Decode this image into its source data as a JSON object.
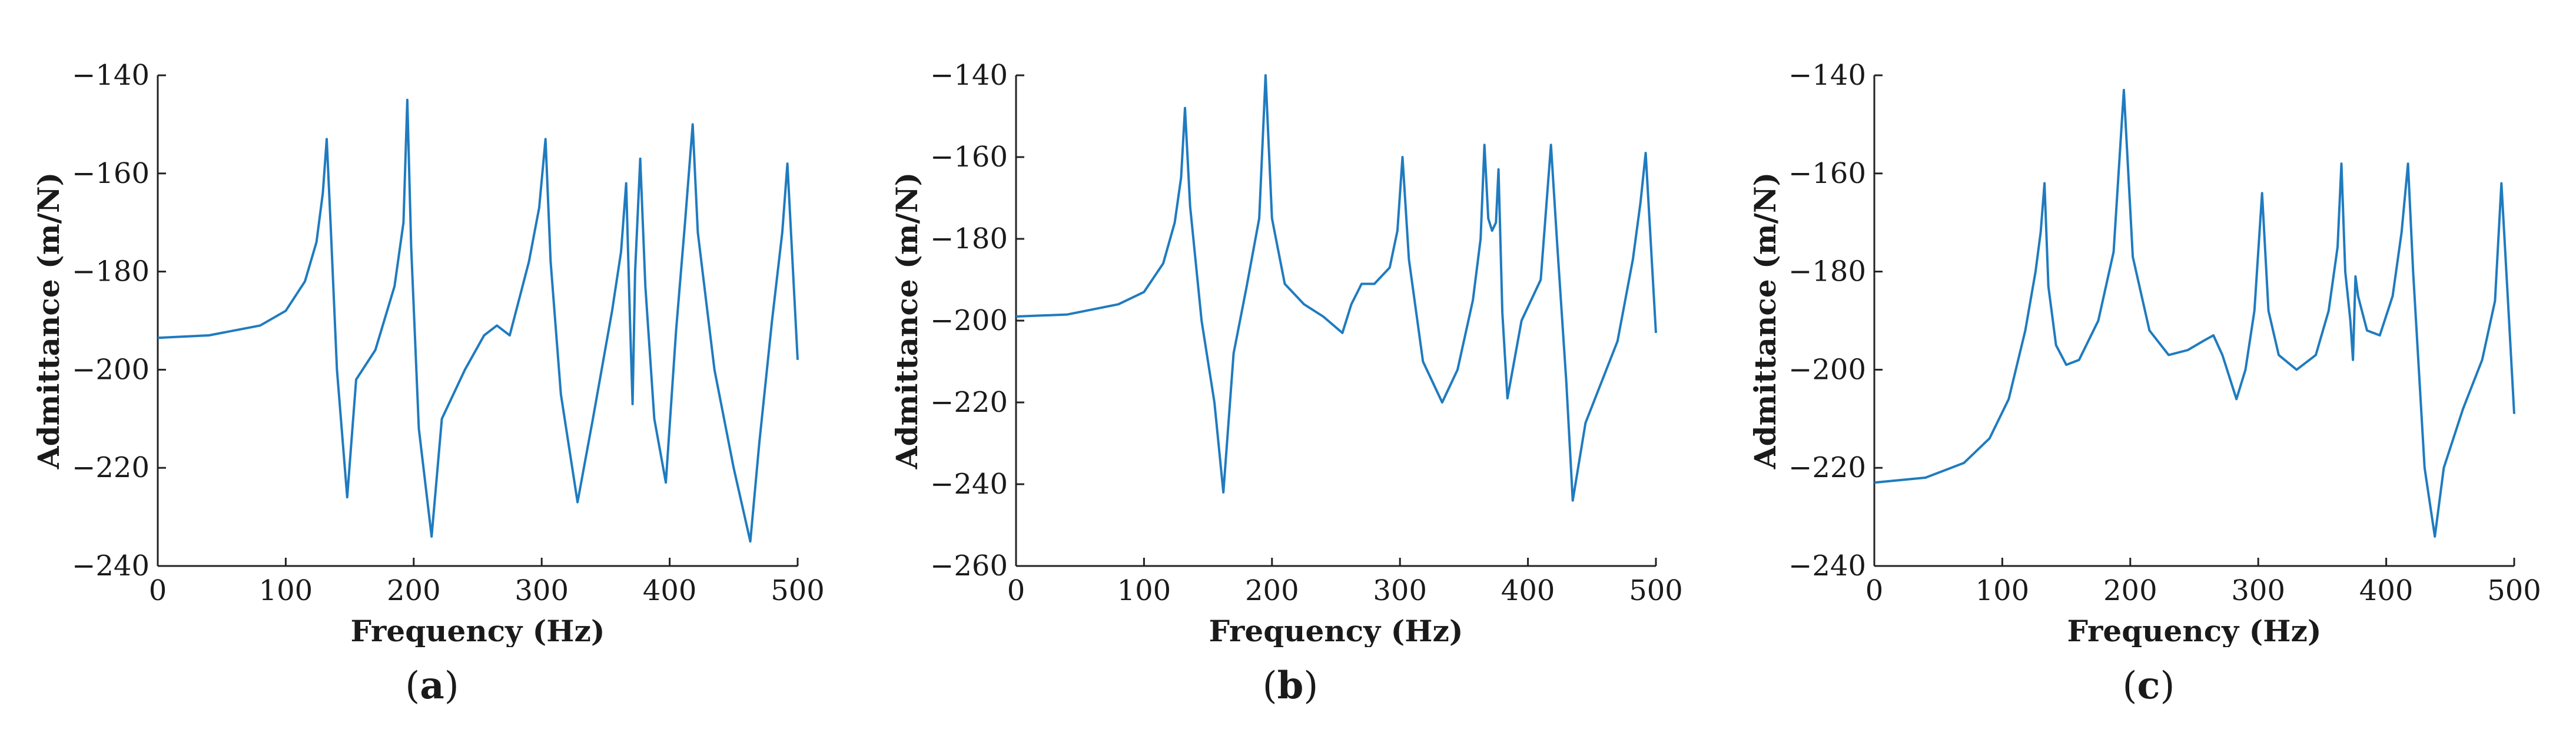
{
  "colors": {
    "line": "#1f7bbf",
    "axis": "#222222"
  },
  "chart_data": [
    {
      "type": "line",
      "panel_label": "a",
      "xlabel": "Frequency (Hz)",
      "ylabel": "Admittance (m/N)",
      "xlim": [
        0,
        500
      ],
      "ylim": [
        -240,
        -140
      ],
      "xticks": [
        0,
        100,
        200,
        300,
        400,
        500
      ],
      "yticks": [
        -140,
        -160,
        -180,
        -200,
        -220,
        -240
      ],
      "grid": false,
      "series": [
        {
          "x": [
            0,
            40,
            80,
            100,
            115,
            124,
            129,
            132,
            135,
            140,
            148,
            155,
            170,
            185,
            192,
            195,
            198,
            204,
            214,
            222,
            240,
            255,
            265,
            275,
            290,
            298,
            303,
            307,
            315,
            328,
            340,
            355,
            362,
            366,
            369,
            371,
            373,
            377,
            381,
            388,
            397,
            405,
            412,
            418,
            422,
            435,
            450,
            463,
            470,
            480,
            488,
            492,
            500
          ],
          "y": [
            -193.5,
            -193,
            -191,
            -188,
            -182,
            -174,
            -164,
            -153,
            -170,
            -200,
            -226,
            -202,
            -196,
            -183,
            -170,
            -145,
            -175,
            -212,
            -234,
            -210,
            -200,
            -193,
            -191,
            -193,
            -178,
            -167,
            -153,
            -178,
            -205,
            -227,
            -210,
            -188,
            -176,
            -162,
            -190,
            -207,
            -180,
            -157,
            -183,
            -210,
            -223,
            -192,
            -170,
            -150,
            -172,
            -200,
            -220,
            -235,
            -215,
            -190,
            -172,
            -158,
            -198
          ]
        }
      ]
    },
    {
      "type": "line",
      "panel_label": "b",
      "xlabel": "Frequency (Hz)",
      "ylabel": "Admittance (m/N)",
      "xlim": [
        0,
        500
      ],
      "ylim": [
        -260,
        -140
      ],
      "xticks": [
        0,
        100,
        200,
        300,
        400,
        500
      ],
      "yticks": [
        -140,
        -160,
        -180,
        -200,
        -220,
        -240,
        -260
      ],
      "grid": false,
      "series": [
        {
          "x": [
            0,
            40,
            80,
            100,
            115,
            124,
            129,
            132,
            136,
            145,
            155,
            162,
            170,
            180,
            190,
            195,
            200,
            210,
            225,
            240,
            255,
            262,
            270,
            280,
            292,
            298,
            302,
            307,
            318,
            333,
            345,
            357,
            363,
            366,
            369,
            372,
            375,
            377,
            380,
            384,
            395,
            410,
            418,
            423,
            430,
            435,
            445,
            470,
            482,
            488,
            492,
            500
          ],
          "y": [
            -199,
            -198.5,
            -196,
            -193,
            -186,
            -176,
            -165,
            -148,
            -172,
            -200,
            -220,
            -242,
            -208,
            -192,
            -175,
            -140,
            -175,
            -191,
            -196,
            -199,
            -203,
            -196,
            -191,
            -191,
            -187,
            -178,
            -160,
            -185,
            -210,
            -220,
            -212,
            -195,
            -180,
            -157,
            -175,
            -178,
            -176,
            -163,
            -198,
            -219,
            -200,
            -190,
            -157,
            -182,
            -215,
            -244,
            -225,
            -205,
            -185,
            -171,
            -159,
            -203
          ]
        }
      ]
    },
    {
      "type": "line",
      "panel_label": "c",
      "xlabel": "Frequency (Hz)",
      "ylabel": "Admittance (m/N)",
      "xlim": [
        0,
        500
      ],
      "ylim": [
        -240,
        -140
      ],
      "xticks": [
        0,
        100,
        200,
        300,
        400,
        500
      ],
      "yticks": [
        -140,
        -160,
        -180,
        -200,
        -220,
        -240
      ],
      "grid": false,
      "series": [
        {
          "x": [
            0,
            40,
            70,
            90,
            105,
            118,
            126,
            130,
            133,
            136,
            142,
            150,
            160,
            175,
            187,
            195,
            202,
            215,
            230,
            245,
            258,
            265,
            272,
            283,
            290,
            297,
            303,
            308,
            316,
            330,
            345,
            355,
            362,
            365,
            368,
            372,
            374,
            376,
            378,
            385,
            395,
            405,
            412,
            417,
            421,
            430,
            438,
            445,
            460,
            475,
            485,
            490,
            496,
            500
          ],
          "y": [
            -223,
            -222,
            -219,
            -214,
            -206,
            -192,
            -180,
            -172,
            -162,
            -183,
            -195,
            -199,
            -198,
            -190,
            -176,
            -143,
            -177,
            -192,
            -197,
            -196,
            -194,
            -193,
            -197,
            -206,
            -200,
            -188,
            -164,
            -188,
            -197,
            -200,
            -197,
            -188,
            -175,
            -158,
            -180,
            -190,
            -198,
            -181,
            -185,
            -192,
            -193,
            -185,
            -172,
            -158,
            -180,
            -220,
            -234,
            -220,
            -208,
            -198,
            -186,
            -162,
            -190,
            -209
          ]
        }
      ]
    }
  ]
}
